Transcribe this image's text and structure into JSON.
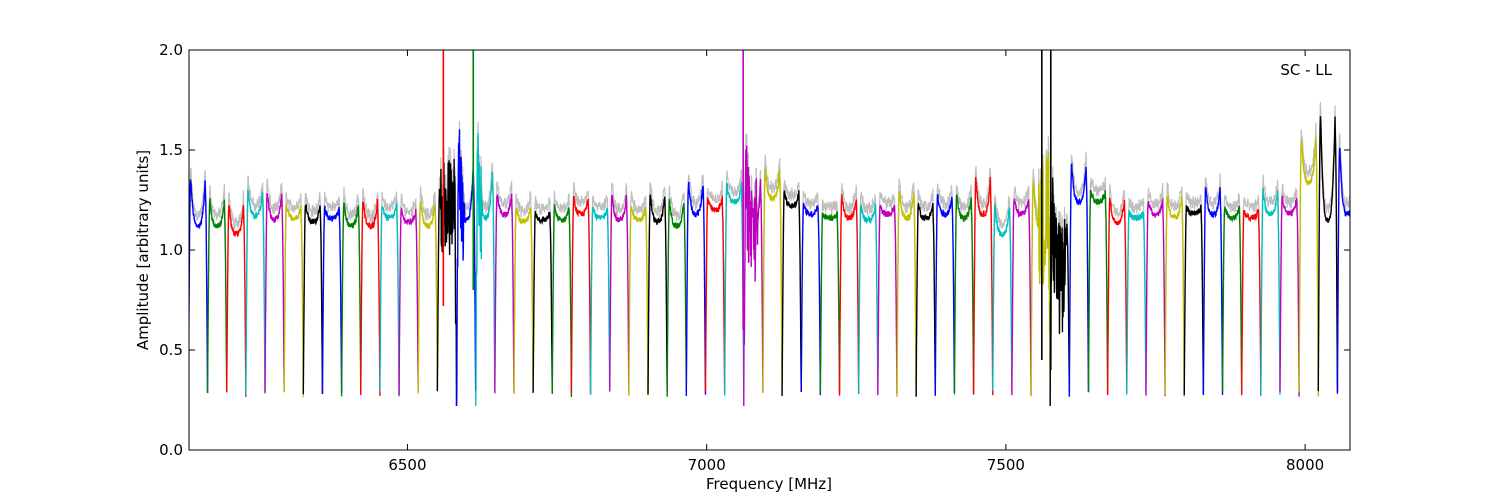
{
  "chart_data": {
    "type": "line",
    "title": "",
    "annotation": "SC - LL",
    "xlabel": "Frequency [MHz]",
    "ylabel": "Amplitude [arbitrary units]",
    "xlim": [
      6135,
      8075
    ],
    "ylim": [
      0.0,
      2.0
    ],
    "xticks": [
      6500,
      7000,
      7500,
      8000
    ],
    "xtick_labels": [
      "6500",
      "7000",
      "7500",
      "8000"
    ],
    "yticks": [
      0.0,
      0.5,
      1.0,
      1.5,
      2.0
    ],
    "ytick_labels": [
      "0.0",
      "0.5",
      "1.0",
      "1.5",
      "2.0"
    ],
    "grid": false,
    "background_trace_color": "#bfbfbf",
    "channel_color_cycle": [
      "#0000ff",
      "#008000",
      "#ff0000",
      "#00bfbf",
      "#bf00bf",
      "#bfbf00",
      "#000000"
    ],
    "channel_shape": {
      "width_mhz": 32,
      "floor": 0.28,
      "edge_peak_offset": 1.2
    },
    "channels": [
      {
        "center": 6150,
        "level": 1.12,
        "peak": 1.36,
        "color": "#0000ff"
      },
      {
        "center": 6182,
        "level": 1.12,
        "peak": 1.25,
        "color": "#008000"
      },
      {
        "center": 6214,
        "level": 1.08,
        "peak": 1.23,
        "color": "#ff0000"
      },
      {
        "center": 6246,
        "level": 1.17,
        "peak": 1.3,
        "color": "#00bfbf"
      },
      {
        "center": 6278,
        "level": 1.15,
        "peak": 1.29,
        "color": "#bf00bf"
      },
      {
        "center": 6310,
        "level": 1.16,
        "peak": 1.22,
        "color": "#bfbf00"
      },
      {
        "center": 6342,
        "level": 1.14,
        "peak": 1.24,
        "color": "#000000"
      },
      {
        "center": 6374,
        "level": 1.16,
        "peak": 1.21,
        "color": "#0000ff"
      },
      {
        "center": 6406,
        "level": 1.12,
        "peak": 1.24,
        "color": "#008000"
      },
      {
        "center": 6438,
        "level": 1.12,
        "peak": 1.25,
        "color": "#ff0000"
      },
      {
        "center": 6470,
        "level": 1.16,
        "peak": 1.23,
        "color": "#00bfbf"
      },
      {
        "center": 6502,
        "level": 1.14,
        "peak": 1.2,
        "color": "#bf00bf"
      },
      {
        "center": 6534,
        "level": 1.12,
        "peak": 1.25,
        "color": "#bfbf00"
      },
      {
        "center": 6566,
        "level": 1.2,
        "peak": 1.3,
        "color": "#000000"
      },
      {
        "center": 6598,
        "level": 1.15,
        "peak": 1.42,
        "color": "#0000ff"
      },
      {
        "center": 6630,
        "level": 1.16,
        "peak": 1.41,
        "color": "#00bfbf"
      },
      {
        "center": 6662,
        "level": 1.18,
        "peak": 1.28,
        "color": "#bf00bf"
      },
      {
        "center": 6694,
        "level": 1.14,
        "peak": 1.22,
        "color": "#bfbf00"
      },
      {
        "center": 6726,
        "level": 1.15,
        "peak": 1.19,
        "color": "#000000"
      },
      {
        "center": 6758,
        "level": 1.15,
        "peak": 1.22,
        "color": "#008000"
      },
      {
        "center": 6790,
        "level": 1.18,
        "peak": 1.26,
        "color": "#ff0000"
      },
      {
        "center": 6822,
        "level": 1.16,
        "peak": 1.22,
        "color": "#00bfbf"
      },
      {
        "center": 6854,
        "level": 1.15,
        "peak": 1.28,
        "color": "#bf00bf"
      },
      {
        "center": 6886,
        "level": 1.15,
        "peak": 1.22,
        "color": "#bfbf00"
      },
      {
        "center": 6918,
        "level": 1.14,
        "peak": 1.28,
        "color": "#000000"
      },
      {
        "center": 6950,
        "level": 1.12,
        "peak": 1.25,
        "color": "#008000"
      },
      {
        "center": 6982,
        "level": 1.18,
        "peak": 1.34,
        "color": "#0000ff"
      },
      {
        "center": 7014,
        "level": 1.2,
        "peak": 1.26,
        "color": "#ff0000"
      },
      {
        "center": 7046,
        "level": 1.24,
        "peak": 1.33,
        "color": "#00bfbf"
      },
      {
        "center": 7078,
        "level": 1.1,
        "peak": 1.35,
        "color": "#bf00bf"
      },
      {
        "center": 7110,
        "level": 1.26,
        "peak": 1.4,
        "color": "#bfbf00"
      },
      {
        "center": 7142,
        "level": 1.22,
        "peak": 1.29,
        "color": "#000000"
      },
      {
        "center": 7174,
        "level": 1.18,
        "peak": 1.23,
        "color": "#0000ff"
      },
      {
        "center": 7206,
        "level": 1.16,
        "peak": 1.18,
        "color": "#008000"
      },
      {
        "center": 7238,
        "level": 1.16,
        "peak": 1.27,
        "color": "#ff0000"
      },
      {
        "center": 7270,
        "level": 1.15,
        "peak": 1.23,
        "color": "#00bfbf"
      },
      {
        "center": 7302,
        "level": 1.18,
        "peak": 1.22,
        "color": "#bf00bf"
      },
      {
        "center": 7334,
        "level": 1.16,
        "peak": 1.3,
        "color": "#bfbf00"
      },
      {
        "center": 7366,
        "level": 1.16,
        "peak": 1.23,
        "color": "#000000"
      },
      {
        "center": 7398,
        "level": 1.18,
        "peak": 1.27,
        "color": "#0000ff"
      },
      {
        "center": 7430,
        "level": 1.16,
        "peak": 1.27,
        "color": "#008000"
      },
      {
        "center": 7462,
        "level": 1.18,
        "peak": 1.36,
        "color": "#ff0000"
      },
      {
        "center": 7494,
        "level": 1.08,
        "peak": 1.22,
        "color": "#00bfbf"
      },
      {
        "center": 7526,
        "level": 1.18,
        "peak": 1.26,
        "color": "#bf00bf"
      },
      {
        "center": 7558,
        "level": 1.12,
        "peak": 1.34,
        "color": "#bfbf00"
      },
      {
        "center": 7590,
        "level": 0.85,
        "peak": 1.14,
        "color": "#000000"
      },
      {
        "center": 7622,
        "level": 1.24,
        "peak": 1.43,
        "color": "#0000ff"
      },
      {
        "center": 7654,
        "level": 1.24,
        "peak": 1.3,
        "color": "#008000"
      },
      {
        "center": 7686,
        "level": 1.14,
        "peak": 1.26,
        "color": "#ff0000"
      },
      {
        "center": 7718,
        "level": 1.16,
        "peak": 1.19,
        "color": "#00bfbf"
      },
      {
        "center": 7750,
        "level": 1.18,
        "peak": 1.25,
        "color": "#bf00bf"
      },
      {
        "center": 7782,
        "level": 1.16,
        "peak": 1.28,
        "color": "#bfbf00"
      },
      {
        "center": 7814,
        "level": 1.18,
        "peak": 1.22,
        "color": "#000000"
      },
      {
        "center": 7846,
        "level": 1.18,
        "peak": 1.31,
        "color": "#0000ff"
      },
      {
        "center": 7878,
        "level": 1.16,
        "peak": 1.22,
        "color": "#008000"
      },
      {
        "center": 7910,
        "level": 1.16,
        "peak": 1.2,
        "color": "#ff0000"
      },
      {
        "center": 7942,
        "level": 1.18,
        "peak": 1.3,
        "color": "#00bfbf"
      },
      {
        "center": 7974,
        "level": 1.18,
        "peak": 1.27,
        "color": "#bf00bf"
      },
      {
        "center": 8006,
        "level": 1.34,
        "peak": 1.56,
        "color": "#bfbf00"
      },
      {
        "center": 8038,
        "level": 1.15,
        "peak": 1.68,
        "color": "#000000"
      },
      {
        "center": 8070,
        "level": 1.18,
        "peak": 1.53,
        "color": "#0000ff"
      }
    ],
    "spikes": [
      {
        "x": 6560,
        "y_low": 0.72,
        "y_high": 2.0,
        "color": "#ff0000"
      },
      {
        "x": 6610,
        "y_low": 0.8,
        "y_high": 2.0,
        "color": "#008000"
      },
      {
        "x": 7061,
        "y_low": 0.6,
        "y_high": 2.0,
        "color": "#bf00bf"
      },
      {
        "x": 7560,
        "y_low": 0.45,
        "y_high": 2.0,
        "color": "#000000"
      },
      {
        "x": 7575,
        "y_low": 0.4,
        "y_high": 2.0,
        "color": "#000000"
      }
    ],
    "noise_regions": [
      {
        "from": 6555,
        "to": 6595,
        "amplitude": 0.25,
        "color": "#ff0000"
      },
      {
        "from": 6600,
        "to": 6625,
        "amplitude": 0.25,
        "color": "#008000"
      },
      {
        "from": 7055,
        "to": 7085,
        "amplitude": 0.25,
        "color": "#bf00bf"
      },
      {
        "from": 7555,
        "to": 7600,
        "amplitude": 0.3,
        "color": "#000000"
      }
    ]
  }
}
